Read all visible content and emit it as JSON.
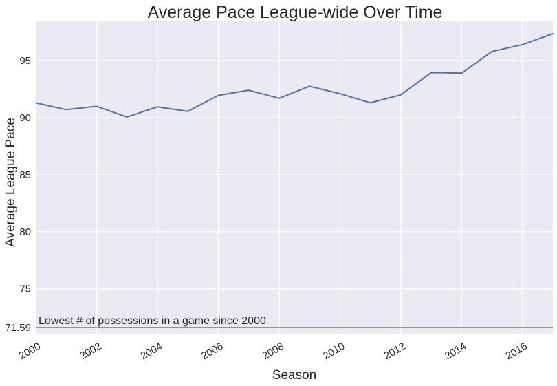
{
  "chart_data": {
    "type": "line",
    "title": "Average Pace League-wide Over Time",
    "xlabel": "Season",
    "ylabel": "Average League Pace",
    "xlim": [
      2000,
      2017
    ],
    "ylim": [
      71.0,
      98.5
    ],
    "x_ticks": [
      2000,
      2002,
      2004,
      2006,
      2008,
      2010,
      2012,
      2014,
      2016
    ],
    "y_ticks": [
      75,
      80,
      85,
      90,
      95
    ],
    "grid": true,
    "series": [
      {
        "x": [
          2000,
          2001,
          2002,
          2003,
          2004,
          2005,
          2006,
          2007,
          2008,
          2009,
          2010,
          2011,
          2012,
          2013,
          2014,
          2015,
          2016,
          2017
        ],
        "values": [
          91.3,
          90.7,
          91.0,
          90.05,
          90.95,
          90.55,
          91.95,
          92.4,
          91.7,
          92.75,
          92.1,
          91.3,
          92.0,
          93.95,
          93.9,
          95.8,
          96.4,
          97.35
        ],
        "color": "#4c72b0"
      }
    ],
    "reference_line": {
      "y": 71.59,
      "tick_label": "71.59",
      "label": "Lowest # of possessions in a game since 2000",
      "color": "#404040"
    },
    "colors": {
      "background": "#eaeaf2",
      "grid": "#ffffff"
    }
  }
}
